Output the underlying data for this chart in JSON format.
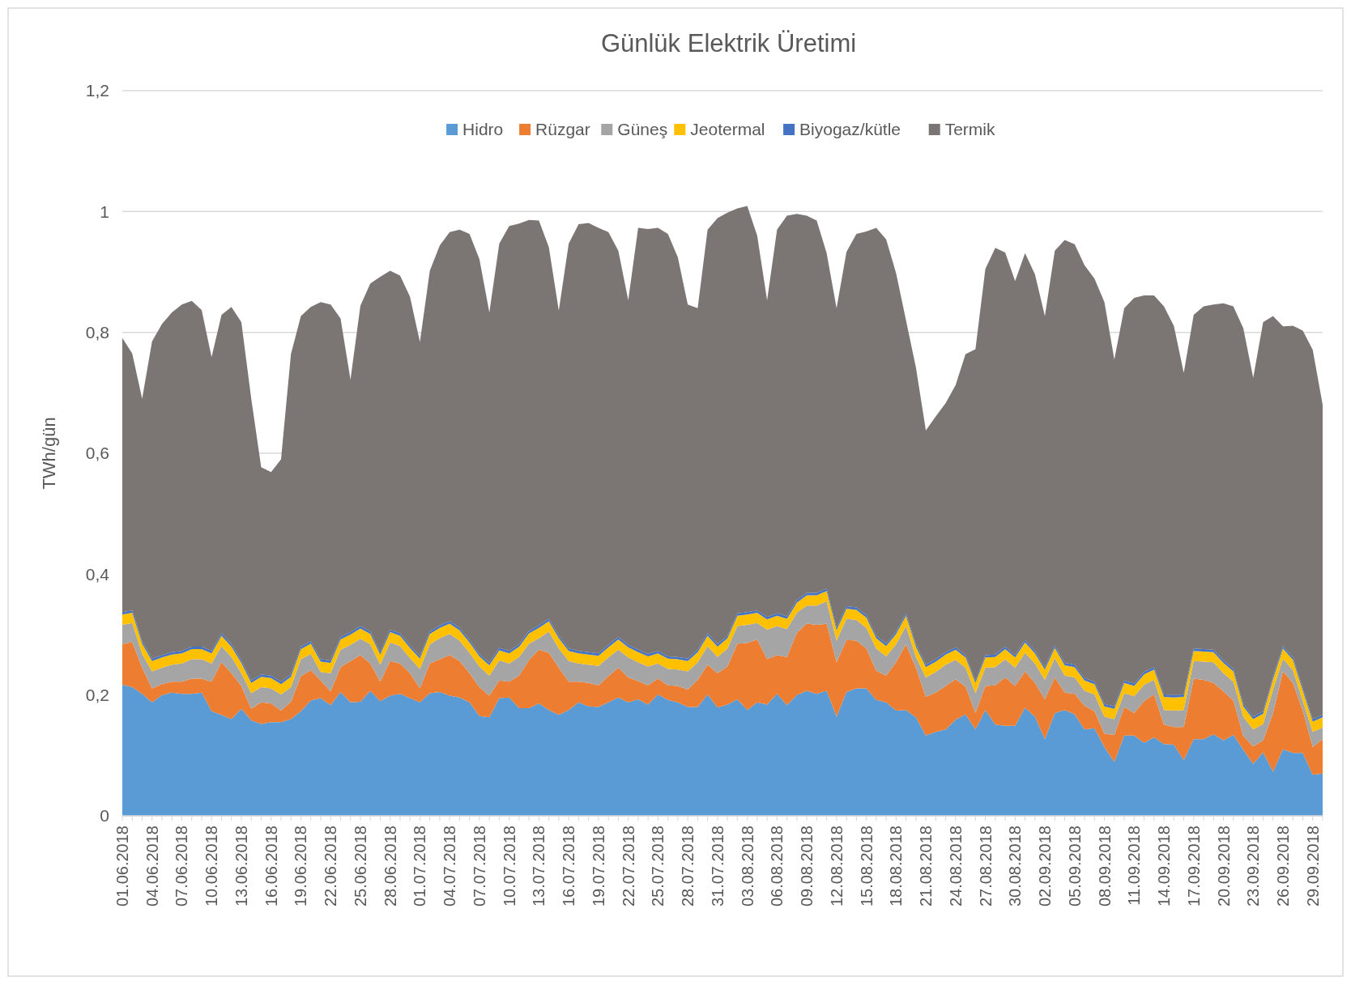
{
  "chart_data": {
    "type": "area",
    "stacked": true,
    "title": "Günlük Elektrik Üretimi",
    "ylabel": "TWh/gün",
    "categories": [
      "01.06.2018",
      null,
      null,
      "04.06.2018",
      null,
      null,
      "07.06.2018",
      null,
      null,
      "10.06.2018",
      null,
      null,
      "13.06.2018",
      null,
      null,
      "16.06.2018",
      null,
      null,
      "19.06.2018",
      null,
      null,
      "22.06.2018",
      null,
      null,
      "25.06.2018",
      null,
      null,
      "28.06.2018",
      null,
      null,
      "01.07.2018",
      null,
      null,
      "04.07.2018",
      null,
      null,
      "07.07.2018",
      null,
      null,
      "10.07.2018",
      null,
      null,
      "13.07.2018",
      null,
      null,
      "16.07.2018",
      null,
      null,
      "19.07.2018",
      null,
      null,
      "22.07.2018",
      null,
      null,
      "25.07.2018",
      null,
      null,
      "28.07.2018",
      null,
      null,
      "31.07.2018",
      null,
      null,
      "03.08.2018",
      null,
      null,
      "06.08.2018",
      null,
      null,
      "09.08.2018",
      null,
      null,
      "12.08.2018",
      null,
      null,
      "15.08.2018",
      null,
      null,
      "18.08.2018",
      null,
      null,
      "21.08.2018",
      null,
      null,
      "24.08.2018",
      null,
      null,
      "27.08.2018",
      null,
      null,
      "30.08.2018",
      null,
      null,
      "02.09.2018",
      null,
      null,
      "05.09.2018",
      null,
      null,
      "08.09.2018",
      null,
      null,
      "11.09.2018",
      null,
      null,
      "14.09.2018",
      null,
      null,
      "17.09.2018",
      null,
      null,
      "20.09.2018",
      null,
      null,
      "23.09.2018",
      null,
      null,
      "26.09.2018",
      null,
      null,
      "29.09.2018",
      null
    ],
    "series": [
      {
        "name": "Hidro",
        "color": "#5b9bd5",
        "values": [
          0.217,
          0.213,
          0.202,
          0.188,
          0.2,
          0.204,
          0.202,
          0.202,
          0.204,
          0.173,
          0.167,
          0.16,
          0.177,
          0.158,
          0.152,
          0.155,
          0.155,
          0.16,
          0.173,
          0.191,
          0.195,
          0.183,
          0.205,
          0.188,
          0.189,
          0.207,
          0.19,
          0.199,
          0.202,
          0.195,
          0.188,
          0.203,
          0.205,
          0.199,
          0.196,
          0.188,
          0.165,
          0.163,
          0.195,
          0.196,
          0.178,
          0.178,
          0.186,
          0.175,
          0.167,
          0.175,
          0.188,
          0.181,
          0.18,
          0.188,
          0.196,
          0.188,
          0.193,
          0.184,
          0.201,
          0.192,
          0.188,
          0.18,
          0.18,
          0.201,
          0.179,
          0.184,
          0.193,
          0.175,
          0.188,
          0.184,
          0.202,
          0.183,
          0.2,
          0.207,
          0.202,
          0.207,
          0.164,
          0.205,
          0.211,
          0.211,
          0.192,
          0.188,
          0.174,
          0.175,
          0.163,
          0.133,
          0.139,
          0.143,
          0.159,
          0.168,
          0.143,
          0.175,
          0.151,
          0.149,
          0.149,
          0.179,
          0.164,
          0.127,
          0.17,
          0.175,
          0.168,
          0.143,
          0.145,
          0.114,
          0.089,
          0.133,
          0.133,
          0.121,
          0.13,
          0.119,
          0.118,
          0.092,
          0.127,
          0.127,
          0.135,
          0.125,
          0.134,
          0.109,
          0.086,
          0.105,
          0.073,
          0.11,
          0.104,
          0.104,
          0.068,
          0.07
        ]
      },
      {
        "name": "Rüzgar",
        "color": "#ed7d31",
        "values": [
          0.067,
          0.075,
          0.043,
          0.023,
          0.018,
          0.018,
          0.02,
          0.025,
          0.023,
          0.049,
          0.087,
          0.076,
          0.038,
          0.019,
          0.036,
          0.031,
          0.019,
          0.029,
          0.058,
          0.05,
          0.029,
          0.023,
          0.041,
          0.068,
          0.077,
          0.045,
          0.032,
          0.057,
          0.05,
          0.041,
          0.023,
          0.049,
          0.054,
          0.067,
          0.06,
          0.048,
          0.048,
          0.036,
          0.029,
          0.026,
          0.054,
          0.08,
          0.089,
          0.095,
          0.078,
          0.047,
          0.034,
          0.039,
          0.036,
          0.043,
          0.049,
          0.041,
          0.03,
          0.032,
          0.026,
          0.024,
          0.027,
          0.029,
          0.045,
          0.049,
          0.057,
          0.063,
          0.092,
          0.111,
          0.104,
          0.075,
          0.064,
          0.08,
          0.103,
          0.111,
          0.114,
          0.111,
          0.09,
          0.086,
          0.079,
          0.066,
          0.048,
          0.044,
          0.08,
          0.109,
          0.082,
          0.064,
          0.065,
          0.072,
          0.067,
          0.046,
          0.027,
          0.04,
          0.065,
          0.08,
          0.066,
          0.06,
          0.056,
          0.066,
          0.059,
          0.029,
          0.034,
          0.039,
          0.028,
          0.022,
          0.045,
          0.047,
          0.037,
          0.069,
          0.071,
          0.032,
          0.029,
          0.055,
          0.1,
          0.098,
          0.085,
          0.081,
          0.057,
          0.023,
          0.029,
          0.02,
          0.097,
          0.129,
          0.116,
          0.07,
          0.046,
          0.057
        ]
      },
      {
        "name": "Güneş",
        "color": "#a5a5a5",
        "values": [
          0.032,
          0.031,
          0.023,
          0.028,
          0.027,
          0.028,
          0.03,
          0.032,
          0.032,
          0.03,
          0.027,
          0.027,
          0.021,
          0.026,
          0.025,
          0.025,
          0.027,
          0.024,
          0.028,
          0.027,
          0.014,
          0.03,
          0.029,
          0.027,
          0.027,
          0.032,
          0.028,
          0.031,
          0.029,
          0.025,
          0.032,
          0.032,
          0.035,
          0.035,
          0.034,
          0.034,
          0.034,
          0.033,
          0.033,
          0.03,
          0.031,
          0.027,
          0.019,
          0.035,
          0.032,
          0.034,
          0.03,
          0.03,
          0.032,
          0.031,
          0.03,
          0.033,
          0.031,
          0.031,
          0.025,
          0.027,
          0.027,
          0.03,
          0.029,
          0.031,
          0.027,
          0.03,
          0.029,
          0.03,
          0.027,
          0.049,
          0.048,
          0.046,
          0.033,
          0.03,
          0.032,
          0.037,
          0.036,
          0.035,
          0.034,
          0.034,
          0.037,
          0.032,
          0.03,
          0.03,
          0.018,
          0.032,
          0.034,
          0.035,
          0.032,
          0.031,
          0.033,
          0.03,
          0.03,
          0.03,
          0.03,
          0.031,
          0.032,
          0.032,
          0.032,
          0.028,
          0.027,
          0.025,
          0.028,
          0.028,
          0.026,
          0.023,
          0.028,
          0.027,
          0.024,
          0.024,
          0.027,
          0.028,
          0.029,
          0.03,
          0.034,
          0.03,
          0.031,
          0.032,
          0.028,
          0.027,
          0.039,
          0.021,
          0.021,
          0.016,
          0.025,
          0.019
        ]
      },
      {
        "name": "Jeotermal",
        "color": "#ffc000",
        "values": [
          0.017,
          0.017,
          0.017,
          0.017,
          0.017,
          0.017,
          0.017,
          0.017,
          0.017,
          0.017,
          0.017,
          0.017,
          0.017,
          0.017,
          0.017,
          0.017,
          0.017,
          0.017,
          0.017,
          0.017,
          0.017,
          0.017,
          0.017,
          0.017,
          0.017,
          0.017,
          0.017,
          0.017,
          0.017,
          0.017,
          0.017,
          0.017,
          0.017,
          0.017,
          0.017,
          0.017,
          0.017,
          0.017,
          0.017,
          0.017,
          0.017,
          0.017,
          0.017,
          0.017,
          0.017,
          0.017,
          0.017,
          0.017,
          0.017,
          0.017,
          0.017,
          0.017,
          0.017,
          0.017,
          0.017,
          0.017,
          0.017,
          0.017,
          0.017,
          0.017,
          0.017,
          0.017,
          0.017,
          0.017,
          0.017,
          0.017,
          0.017,
          0.017,
          0.017,
          0.017,
          0.017,
          0.017,
          0.017,
          0.017,
          0.017,
          0.017,
          0.017,
          0.017,
          0.017,
          0.017,
          0.017,
          0.017,
          0.017,
          0.017,
          0.017,
          0.017,
          0.017,
          0.017,
          0.017,
          0.017,
          0.017,
          0.017,
          0.017,
          0.017,
          0.017,
          0.017,
          0.017,
          0.017,
          0.017,
          0.017,
          0.017,
          0.017,
          0.017,
          0.017,
          0.017,
          0.022,
          0.022,
          0.022,
          0.017,
          0.017,
          0.017,
          0.017,
          0.017,
          0.017,
          0.017,
          0.017,
          0.017,
          0.017,
          0.017,
          0.017,
          0.017,
          0.017
        ]
      },
      {
        "name": "Biyogaz/kütle",
        "color": "#4472c4",
        "values": [
          0.004,
          0.004,
          0.004,
          0.004,
          0.004,
          0.004,
          0.004,
          0.004,
          0.004,
          0.004,
          0.004,
          0.004,
          0.004,
          0.004,
          0.004,
          0.004,
          0.004,
          0.004,
          0.004,
          0.004,
          0.004,
          0.004,
          0.004,
          0.004,
          0.004,
          0.004,
          0.004,
          0.004,
          0.004,
          0.004,
          0.004,
          0.004,
          0.004,
          0.004,
          0.004,
          0.004,
          0.004,
          0.004,
          0.004,
          0.004,
          0.004,
          0.004,
          0.004,
          0.004,
          0.004,
          0.004,
          0.004,
          0.004,
          0.004,
          0.004,
          0.004,
          0.004,
          0.004,
          0.004,
          0.004,
          0.004,
          0.004,
          0.004,
          0.004,
          0.004,
          0.004,
          0.004,
          0.004,
          0.004,
          0.004,
          0.004,
          0.004,
          0.004,
          0.004,
          0.004,
          0.004,
          0.004,
          0.004,
          0.004,
          0.004,
          0.004,
          0.004,
          0.004,
          0.004,
          0.004,
          0.004,
          0.004,
          0.004,
          0.004,
          0.004,
          0.004,
          0.004,
          0.004,
          0.004,
          0.004,
          0.004,
          0.004,
          0.004,
          0.004,
          0.004,
          0.004,
          0.004,
          0.004,
          0.004,
          0.004,
          0.004,
          0.004,
          0.004,
          0.004,
          0.004,
          0.004,
          0.004,
          0.004,
          0.004,
          0.004,
          0.004,
          0.004,
          0.004,
          0.004,
          0.004,
          0.004,
          0.004,
          0.004,
          0.004,
          0.004,
          0.004,
          0.004
        ]
      },
      {
        "name": "Termik",
        "color": "#7b7674",
        "values": [
          0.454,
          0.425,
          0.401,
          0.525,
          0.548,
          0.562,
          0.573,
          0.572,
          0.557,
          0.486,
          0.527,
          0.558,
          0.56,
          0.466,
          0.343,
          0.337,
          0.368,
          0.53,
          0.547,
          0.553,
          0.591,
          0.589,
          0.527,
          0.418,
          0.53,
          0.576,
          0.621,
          0.594,
          0.592,
          0.577,
          0.52,
          0.597,
          0.629,
          0.644,
          0.659,
          0.672,
          0.653,
          0.58,
          0.669,
          0.703,
          0.696,
          0.68,
          0.67,
          0.615,
          0.538,
          0.67,
          0.706,
          0.71,
          0.704,
          0.683,
          0.639,
          0.57,
          0.698,
          0.703,
          0.7,
          0.699,
          0.661,
          0.586,
          0.565,
          0.668,
          0.705,
          0.7,
          0.67,
          0.672,
          0.62,
          0.524,
          0.635,
          0.663,
          0.639,
          0.624,
          0.616,
          0.555,
          0.529,
          0.586,
          0.618,
          0.635,
          0.675,
          0.669,
          0.593,
          0.485,
          0.458,
          0.388,
          0.402,
          0.412,
          0.434,
          0.498,
          0.548,
          0.639,
          0.673,
          0.652,
          0.619,
          0.64,
          0.623,
          0.581,
          0.653,
          0.7,
          0.696,
          0.683,
          0.667,
          0.665,
          0.574,
          0.616,
          0.638,
          0.623,
          0.615,
          0.642,
          0.611,
          0.532,
          0.552,
          0.567,
          0.571,
          0.591,
          0.6,
          0.622,
          0.561,
          0.644,
          0.597,
          0.529,
          0.549,
          0.592,
          0.611,
          0.513
        ]
      }
    ],
    "ylim": [
      0,
      1.2
    ],
    "yticks": [
      0,
      {
        "value": 0.2,
        "label": "0,2"
      },
      {
        "value": 0.4,
        "label": "0,4"
      },
      {
        "value": 0.6,
        "label": "0,6"
      },
      {
        "value": 0.8,
        "label": "0,8"
      },
      1,
      {
        "value": 1.2,
        "label": "1,2"
      }
    ],
    "grid": "y",
    "legend": "top"
  }
}
